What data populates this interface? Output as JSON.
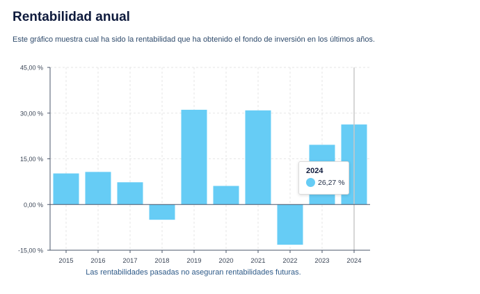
{
  "header": {
    "title": "Rentabilidad anual",
    "subtitle": "Este gráfico muestra cual ha sido la rentabilidad que ha obtenido el fondo de inversión en los últimos años."
  },
  "footnote": "Las rentabilidades pasadas no aseguran rentabilidades futuras.",
  "tooltip": {
    "year": "2024",
    "value": "26,27 %"
  },
  "colors": {
    "bar": "#66ccf5",
    "axis": "#4a5568",
    "grid": "#e6e6e6",
    "hover_line": "#c8c8c8"
  },
  "chart_data": {
    "type": "bar",
    "title": "Rentabilidad anual",
    "categories": [
      "2015",
      "2016",
      "2017",
      "2018",
      "2019",
      "2020",
      "2021",
      "2022",
      "2023",
      "2024"
    ],
    "values": [
      10.2,
      10.7,
      7.3,
      -5.0,
      31.1,
      6.1,
      30.9,
      -13.2,
      19.6,
      26.27
    ],
    "ylim": [
      -15,
      45
    ],
    "yticks": [
      -15,
      0,
      15,
      30,
      45
    ],
    "ytick_labels": [
      "-15,00 %",
      "0,00 %",
      "15,00 %",
      "30,00 %",
      "45,00 %"
    ],
    "highlighted_category": "2024",
    "xlabel": "",
    "ylabel": "",
    "grid": true
  }
}
